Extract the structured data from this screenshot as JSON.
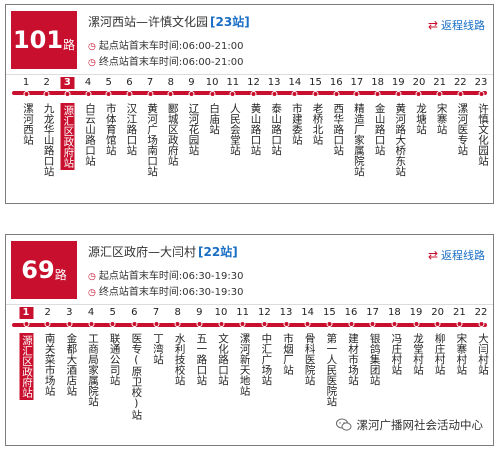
{
  "routes": [
    {
      "number": "101",
      "lu": "路",
      "name": "漯河西站—许慎文化园",
      "count": "[23站]",
      "first_label": "起点站首末车时间:06:00-21:00",
      "last_label": "终点站首末车时间:06:00-21:00",
      "reverse": "返程线路",
      "active_index": 3,
      "stops": [
        {
          "i": "1",
          "n": "漯河西站"
        },
        {
          "i": "2",
          "n": "九龙华山路口站"
        },
        {
          "i": "3",
          "n": "源汇区政府站"
        },
        {
          "i": "4",
          "n": "白云山路口站"
        },
        {
          "i": "5",
          "n": "市体育馆站"
        },
        {
          "i": "6",
          "n": "汉江路口站"
        },
        {
          "i": "7",
          "n": "黄河广场南口站"
        },
        {
          "i": "8",
          "n": "郾城区政府站"
        },
        {
          "i": "9",
          "n": "辽河花园站"
        },
        {
          "i": "10",
          "n": "白庙站"
        },
        {
          "i": "11",
          "n": "人民会堂站"
        },
        {
          "i": "12",
          "n": "黄山路口站"
        },
        {
          "i": "13",
          "n": "泰山路口站"
        },
        {
          "i": "14",
          "n": "市建委站"
        },
        {
          "i": "15",
          "n": "老桥北站"
        },
        {
          "i": "16",
          "n": "西华路口站"
        },
        {
          "i": "17",
          "n": "精造厂家属院站"
        },
        {
          "i": "18",
          "n": "金山路口站"
        },
        {
          "i": "19",
          "n": "黄河路大桥东站"
        },
        {
          "i": "20",
          "n": "龙塘站"
        },
        {
          "i": "21",
          "n": "宋寨站"
        },
        {
          "i": "22",
          "n": "漯河医专站"
        },
        {
          "i": "23",
          "n": "许慎文化园站"
        }
      ]
    },
    {
      "number": "69",
      "lu": "路",
      "name": "源汇区政府—大闫村",
      "count": "[22站]",
      "first_label": "起点站首末车时间:06:30-19:30",
      "last_label": "终点站首末车时间:06:30-19:30",
      "reverse": "返程线路",
      "active_index": 1,
      "stops": [
        {
          "i": "1",
          "n": "源汇区政府站"
        },
        {
          "i": "2",
          "n": "南关菜市场站"
        },
        {
          "i": "3",
          "n": "金都大酒店站"
        },
        {
          "i": "4",
          "n": "工商局家属院站"
        },
        {
          "i": "5",
          "n": "联通公司站"
        },
        {
          "i": "6",
          "n": "医专(原卫校)站"
        },
        {
          "i": "7",
          "n": "丁湾站"
        },
        {
          "i": "8",
          "n": "水利技校站"
        },
        {
          "i": "9",
          "n": "五一路口站"
        },
        {
          "i": "10",
          "n": "文化路口站"
        },
        {
          "i": "11",
          "n": "漯河新天地站"
        },
        {
          "i": "12",
          "n": "中汇广场站"
        },
        {
          "i": "13",
          "n": "市烟厂站"
        },
        {
          "i": "14",
          "n": "骨科医院站"
        },
        {
          "i": "15",
          "n": "第一人民医院站"
        },
        {
          "i": "16",
          "n": "建材市场站"
        },
        {
          "i": "17",
          "n": "银鸽集团站"
        },
        {
          "i": "18",
          "n": "冯庄村站"
        },
        {
          "i": "19",
          "n": "龙堂村站"
        },
        {
          "i": "20",
          "n": "柳庄村站"
        },
        {
          "i": "21",
          "n": "宋寨村站"
        },
        {
          "i": "22",
          "n": "大闫村站"
        }
      ]
    }
  ],
  "watermark": "漯河广播网社会活动中心",
  "icons": {
    "reverse": "swap-arrows-icon",
    "clock": "clock-icon",
    "watermark": "wechat-icon"
  },
  "colors": {
    "accent": "#c8102e",
    "link": "#1a6fc4"
  }
}
